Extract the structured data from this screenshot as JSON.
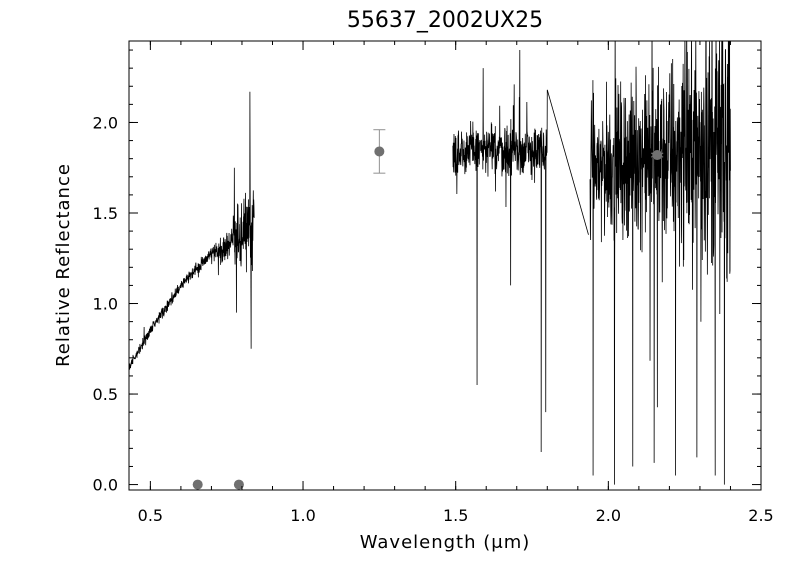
{
  "chart_data": {
    "type": "line",
    "title": "55637_2002UX25",
    "xlabel": "Wavelength (μm)",
    "ylabel": "Relative Reflectance",
    "xlim": [
      0.43,
      2.5
    ],
    "ylim": [
      -0.03,
      2.45
    ],
    "x_ticks": [
      0.5,
      1.0,
      1.5,
      2.0,
      2.5
    ],
    "x_tick_labels": [
      "0.5",
      "1.0",
      "1.5",
      "2.0",
      "2.5"
    ],
    "y_ticks": [
      0.0,
      0.5,
      1.0,
      1.5,
      2.0
    ],
    "y_tick_labels": [
      "0.0",
      "0.5",
      "1.0",
      "1.5",
      "2.0"
    ],
    "grid": false,
    "series": [
      {
        "style": "noisy-line",
        "color": "#000000",
        "segments": [
          {
            "x_range": [
              0.43,
              0.84
            ],
            "trend": [
              [
                0.43,
                0.65
              ],
              [
                0.5,
                0.85
              ],
              [
                0.6,
                1.1
              ],
              [
                0.7,
                1.28
              ],
              [
                0.76,
                1.32
              ],
              [
                0.8,
                1.38
              ],
              [
                0.84,
                1.45
              ]
            ],
            "noise": [
              [
                0.43,
                0.04
              ],
              [
                0.7,
                0.05
              ],
              [
                0.76,
                0.15
              ],
              [
                0.8,
                0.3
              ],
              [
                0.84,
                0.4
              ]
            ],
            "extremes": [
              [
                0.775,
                1.75
              ],
              [
                0.782,
                0.95
              ],
              [
                0.826,
                2.17
              ],
              [
                0.83,
                0.75
              ]
            ]
          },
          {
            "x_range": [
              1.49,
              1.8
            ],
            "trend": [
              [
                1.49,
                1.85
              ],
              [
                1.65,
                1.85
              ],
              [
                1.8,
                1.83
              ]
            ],
            "noise": [
              [
                1.49,
                0.2
              ],
              [
                1.8,
                0.22
              ]
            ],
            "extremes": [
              [
                1.57,
                0.55
              ],
              [
                1.59,
                2.3
              ],
              [
                1.68,
                1.1
              ],
              [
                1.71,
                2.4
              ],
              [
                1.78,
                0.18
              ],
              [
                1.795,
                0.4
              ],
              [
                1.8,
                2.18
              ]
            ]
          },
          {
            "x_range": [
              1.94,
              2.4
            ],
            "trend": [
              [
                1.94,
                1.75
              ],
              [
                2.1,
                1.8
              ],
              [
                2.25,
                1.85
              ],
              [
                2.4,
                1.9
              ]
            ],
            "noise": [
              [
                1.94,
                0.55
              ],
              [
                2.1,
                0.6
              ],
              [
                2.25,
                0.85
              ],
              [
                2.4,
                1.0
              ]
            ],
            "extremes": [
              [
                1.95,
                0.05
              ],
              [
                2.02,
                0.0
              ],
              [
                2.08,
                0.1
              ],
              [
                2.15,
                0.12
              ],
              [
                2.22,
                0.05
              ],
              [
                2.29,
                0.15
              ],
              [
                2.35,
                0.05
              ],
              [
                2.38,
                0.0
              ]
            ]
          }
        ],
        "connector": [
          [
            1.8,
            2.18
          ],
          [
            1.935,
            1.38
          ]
        ]
      }
    ],
    "photometry": {
      "color": "#707070",
      "points": [
        {
          "x": 0.655,
          "y": 0.0
        },
        {
          "x": 0.79,
          "y": 0.0
        },
        {
          "x": 1.25,
          "y": 1.84,
          "err": 0.12
        },
        {
          "x": 2.16,
          "y": 1.82,
          "err": 0.01
        }
      ]
    }
  }
}
